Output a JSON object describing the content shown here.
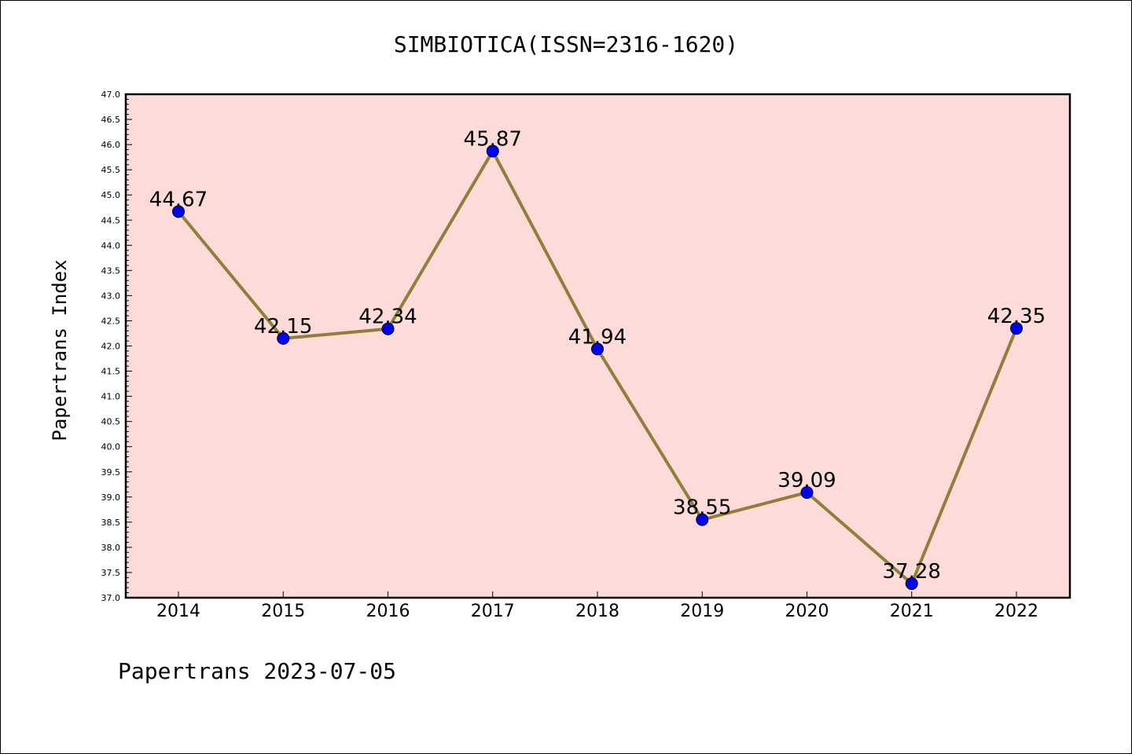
{
  "colors": {
    "plot_background": "#fddbd8",
    "line": "#8e7f3c",
    "marker": "#0000ff",
    "axis": "#000000"
  },
  "footer": "Papertrans 2023-07-05",
  "chart_data": {
    "type": "line",
    "title": "SIMBIOTICA(ISSN=2316-1620)",
    "xlabel": "",
    "ylabel": "Papertrans Index",
    "categories": [
      "2014",
      "2015",
      "2016",
      "2017",
      "2018",
      "2019",
      "2020",
      "2021",
      "2022"
    ],
    "series": [
      {
        "values": [
          44.67,
          42.15,
          42.34,
          45.87,
          41.94,
          38.55,
          39.09,
          37.28,
          42.35
        ],
        "labels": [
          "44.67",
          "42.15",
          "42.34",
          "45.87",
          "41.94",
          "38.55",
          "39.09",
          "37.28",
          "42.35"
        ]
      }
    ],
    "ylim": [
      37.0,
      47.0
    ],
    "yticks": [
      "37.0",
      "37.5",
      "38.0",
      "38.5",
      "39.0",
      "39.5",
      "40.0",
      "40.5",
      "41.0",
      "41.5",
      "42.0",
      "42.5",
      "43.0",
      "43.5",
      "44.0",
      "44.5",
      "45.0",
      "45.5",
      "46.0",
      "46.5",
      "47.0"
    ],
    "grid": false,
    "legend": "none"
  }
}
